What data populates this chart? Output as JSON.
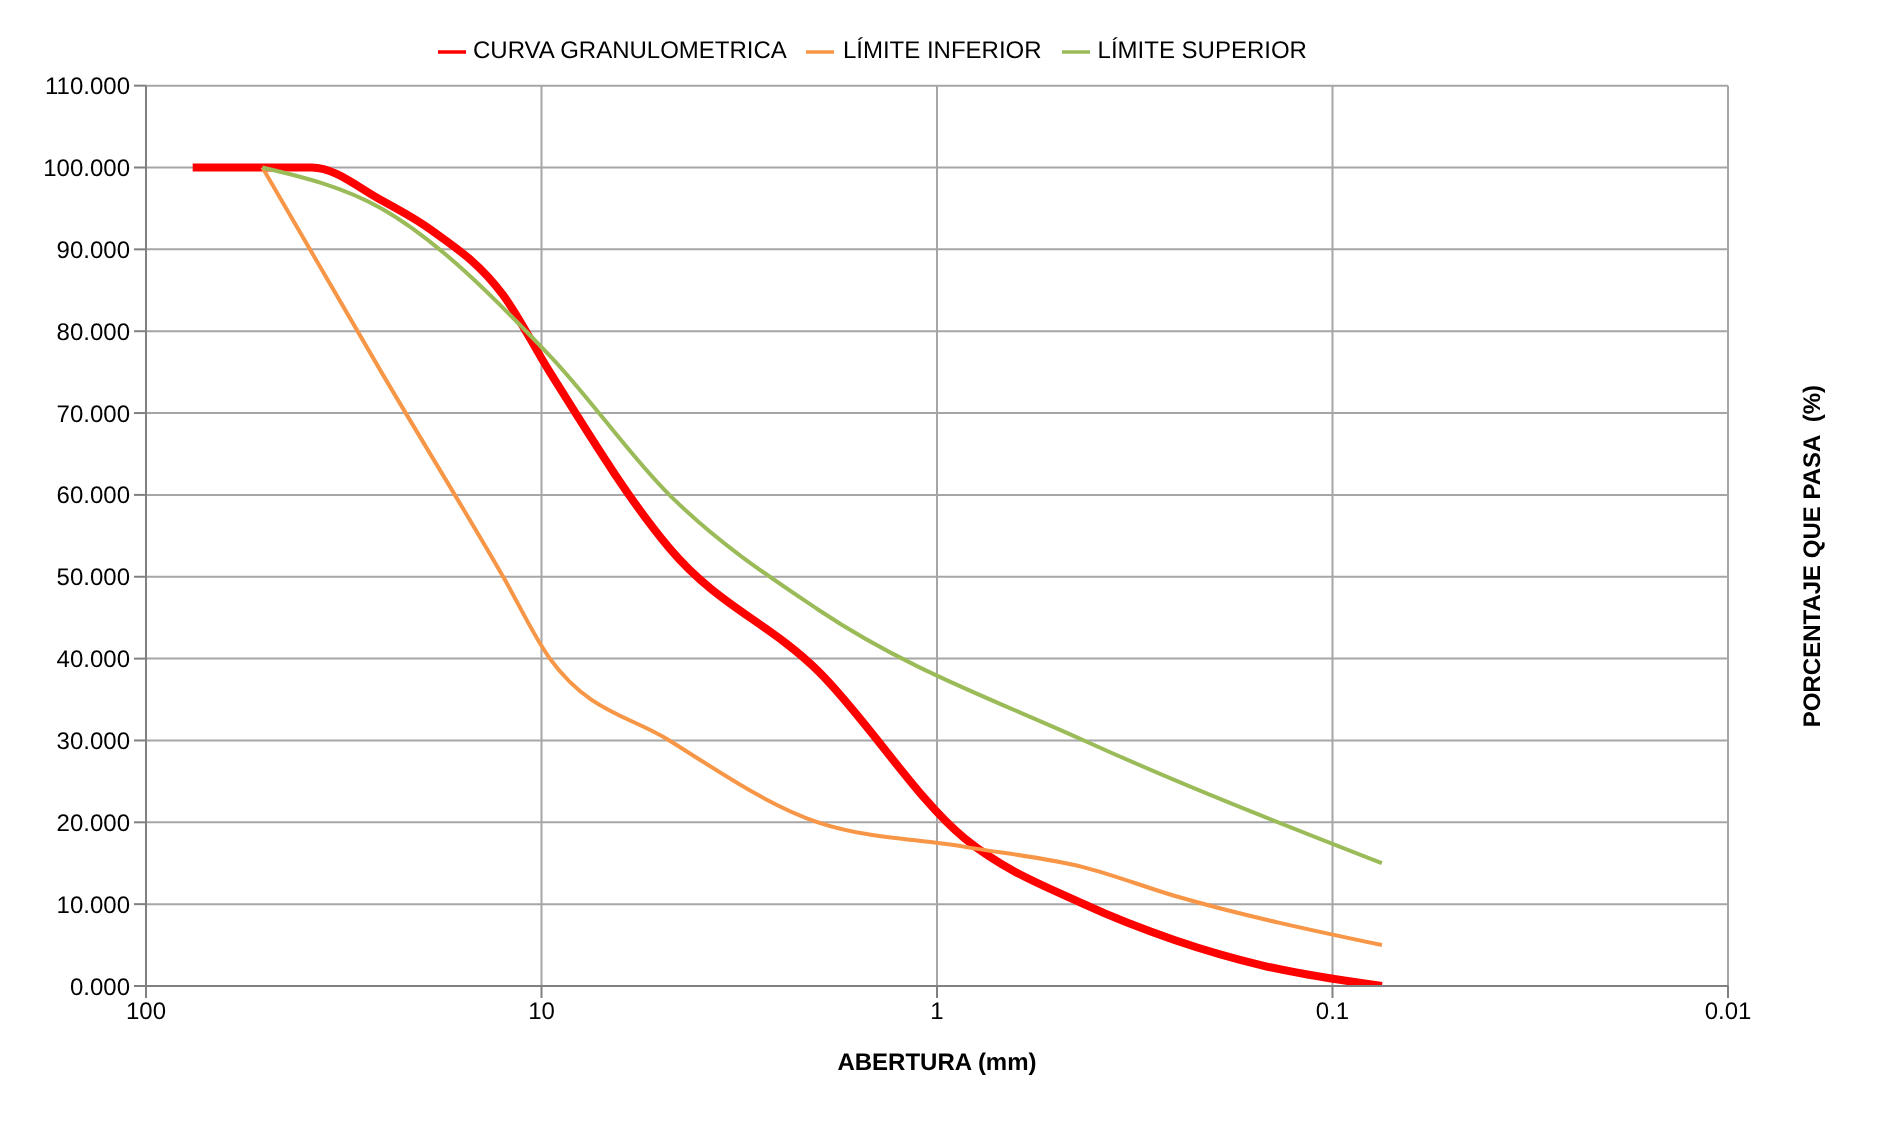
{
  "chart_data": {
    "type": "line",
    "xlabel": "ABERTURA (mm)",
    "ylabel": "PORCENTAJE QUE PASA  (%)",
    "log": "x",
    "xlim": [
      100,
      0.01
    ],
    "xticks": [
      100,
      10,
      1,
      0.1,
      0.01
    ],
    "ylim": [
      0,
      110
    ],
    "yticks": [
      {
        "value": 0,
        "label": "0.000"
      },
      {
        "value": 10,
        "label": "10.000"
      },
      {
        "value": 20,
        "label": "20.000"
      },
      {
        "value": 30,
        "label": "30.000"
      },
      {
        "value": 40,
        "label": "40.000"
      },
      {
        "value": 50,
        "label": "50.000"
      },
      {
        "value": 60,
        "label": "60.000"
      },
      {
        "value": 70,
        "label": "70.000"
      },
      {
        "value": 80,
        "label": "80.000"
      },
      {
        "value": 90,
        "label": "90.000"
      },
      {
        "value": 100,
        "label": "100.000"
      },
      {
        "value": 110,
        "label": "110.000"
      }
    ],
    "grid": true,
    "legend": "top",
    "marker": "none",
    "line_style": "solid",
    "series": [
      {
        "name": "CURVA GRANULOMETRICA",
        "color": "#ff0000",
        "x": [
          76.2,
          50.8,
          38.1,
          25.4,
          19.05,
          12.5,
          9.525,
          4.75,
          2,
          0.85,
          0.425,
          0.25,
          0.15,
          0.075
        ],
        "values": [
          100,
          100,
          100,
          96,
          92.4,
          84.4,
          75,
          53.5,
          38.5,
          18,
          10,
          5.6,
          2.5,
          0
        ]
      },
      {
        "name": "LÍMITE INFERIOR",
        "color": "#f79646",
        "x": [
          50.8,
          25.4,
          12.5,
          9.525,
          4.75,
          2,
          0.85,
          0.425,
          0.25,
          0.075
        ],
        "values": [
          100,
          75,
          50,
          40,
          30,
          20,
          17,
          14.5,
          11,
          5
        ]
      },
      {
        "name": "LÍMITE SUPERIOR",
        "color": "#9bbb59",
        "x": [
          50.8,
          25.4,
          9.525,
          4.75,
          2,
          0.425,
          0.075
        ],
        "values": [
          100,
          95,
          77,
          60,
          46,
          30,
          15
        ]
      }
    ]
  }
}
